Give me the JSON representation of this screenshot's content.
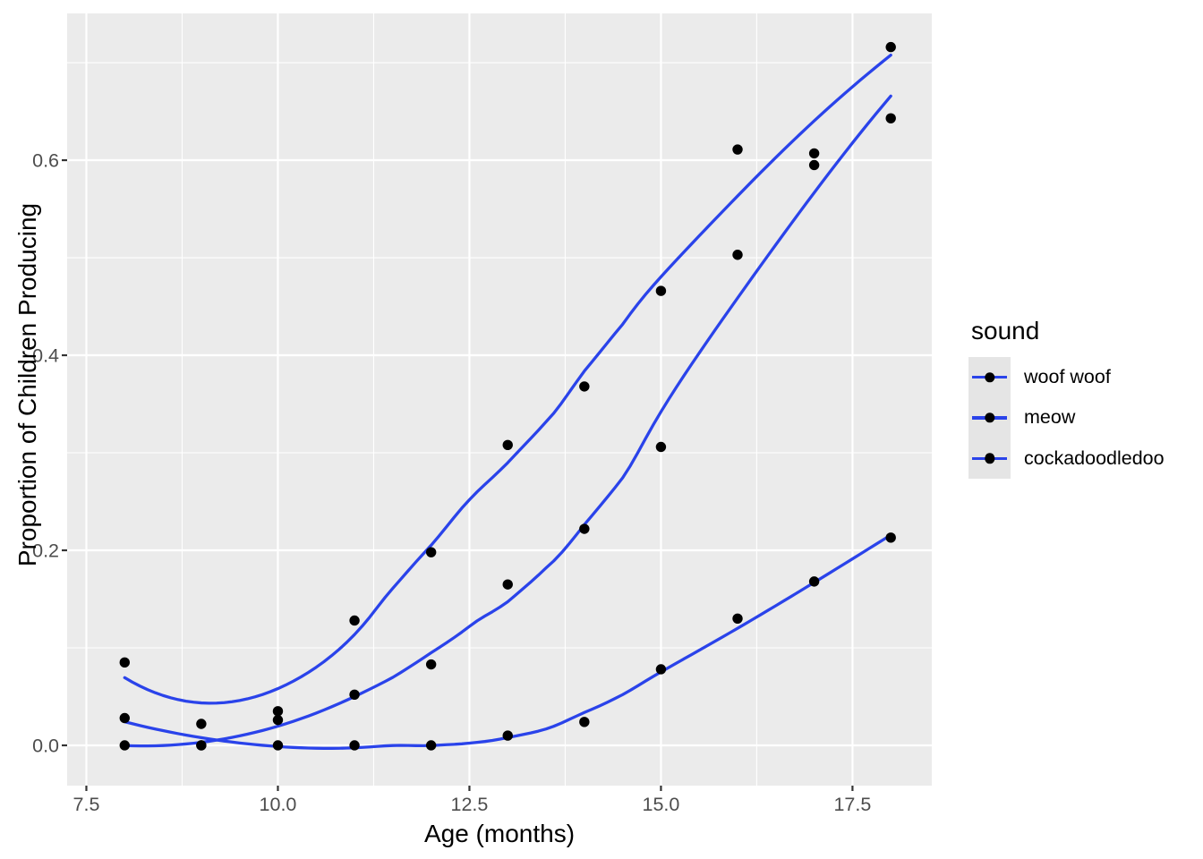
{
  "figure": {
    "background": "#FFFFFF",
    "panel_background": "#EBEBEB",
    "grid_color": "#FFFFFF",
    "tick_mark_color": "#333333",
    "tick_label_color": "#4D4D4D",
    "axis_title_color": "#000000"
  },
  "legend": {
    "title": "sound",
    "key_fill": "#E5E5E5",
    "entries": [
      {
        "label": "woof woof"
      },
      {
        "label": "meow"
      },
      {
        "label": "cockadoodledoo"
      }
    ]
  },
  "chart_data": {
    "type": "scatter",
    "title": "",
    "xlabel": "Age (months)",
    "ylabel": "Proportion of Children Producing",
    "smoother": "loess",
    "point_color": "#000000",
    "line_color": "#2A43EA",
    "x": [
      8,
      9,
      10,
      11,
      12,
      13,
      14,
      15,
      16,
      17,
      18
    ],
    "series": [
      {
        "name": "woof woof",
        "values": [
          0.085,
          0.022,
          0.035,
          0.128,
          0.198,
          0.308,
          0.368,
          0.466,
          0.611,
          0.607,
          0.716
        ]
      },
      {
        "name": "meow",
        "values": [
          0.0,
          0.0,
          0.026,
          0.052,
          0.083,
          0.165,
          0.222,
          0.306,
          0.503,
          0.595,
          0.643
        ]
      },
      {
        "name": "cockadoodledoo",
        "values": [
          0.028,
          0.0,
          0.0,
          0.0,
          0.0,
          0.01,
          0.024,
          0.078,
          0.13,
          0.168,
          0.213
        ]
      }
    ],
    "xlim": [
      7.249,
      18.535
    ],
    "ylim": [
      -0.0413,
      0.7505
    ],
    "x_major_ticks": [
      7.5,
      10.0,
      12.5,
      15.0,
      17.5
    ],
    "x_tick_labels": [
      "7.5",
      "10.0",
      "12.5",
      "15.0",
      "17.5"
    ],
    "x_minor_ticks": [
      8.75,
      11.25,
      13.75,
      16.25
    ],
    "y_major_ticks": [
      0.0,
      0.2,
      0.4,
      0.6
    ],
    "y_tick_labels": [
      "0.0",
      "0.2",
      "0.4",
      "0.6"
    ],
    "y_minor_ticks": [
      0.1,
      0.3,
      0.5,
      0.7
    ],
    "grid": true,
    "legend_position": "right"
  }
}
